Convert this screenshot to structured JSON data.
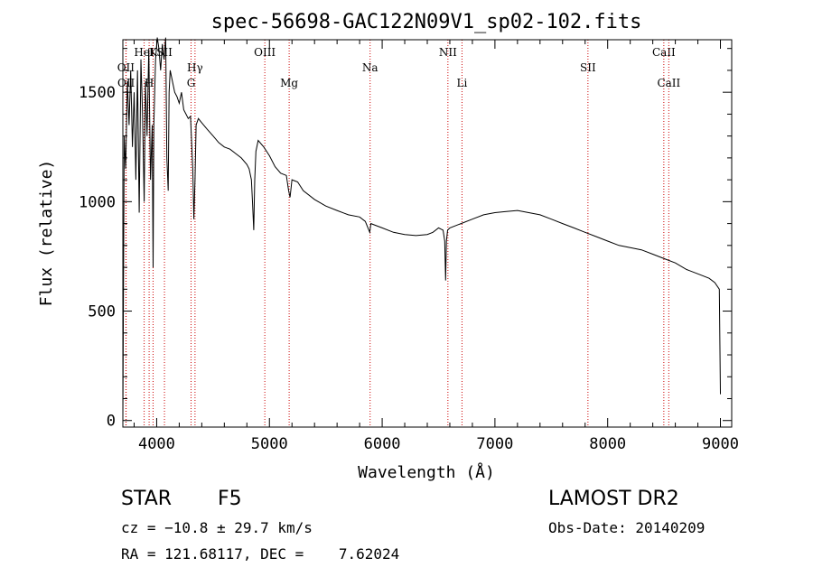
{
  "chart_data": {
    "type": "line",
    "title": "spec-56698-GAC122N09V1_sp02-102.fits",
    "xlabel": "Wavelength (Å)",
    "ylabel": "Flux (relative)",
    "xlim": [
      3700,
      9100
    ],
    "ylim": [
      -30,
      1740
    ],
    "xticks": [
      4000,
      5000,
      6000,
      7000,
      8000,
      9000
    ],
    "yticks": [
      0,
      500,
      1000,
      1500
    ],
    "grid": false,
    "series": [
      {
        "x": [
          3700,
          3712,
          3725,
          3740,
          3755,
          3770,
          3785,
          3800,
          3815,
          3830,
          3845,
          3860,
          3875,
          3889,
          3900,
          3915,
          3930,
          3945,
          3960,
          3968,
          3975,
          3990,
          4005,
          4020,
          4035,
          4050,
          4065,
          4080,
          4090,
          4102,
          4110,
          4120,
          4140,
          4160,
          4180,
          4200,
          4220,
          4240,
          4260,
          4280,
          4300,
          4320,
          4330,
          4340,
          4350,
          4370,
          4400,
          4450,
          4500,
          4550,
          4600,
          4650,
          4700,
          4750,
          4800,
          4820,
          4840,
          4850,
          4861,
          4870,
          4880,
          4900,
          4950,
          5000,
          5050,
          5100,
          5150,
          5170,
          5183,
          5200,
          5250,
          5300,
          5400,
          5500,
          5600,
          5700,
          5800,
          5850,
          5890,
          5900,
          5950,
          6000,
          6100,
          6200,
          6300,
          6400,
          6450,
          6500,
          6540,
          6555,
          6563,
          6570,
          6580,
          6600,
          6700,
          6800,
          6900,
          7000,
          7100,
          7200,
          7300,
          7400,
          7500,
          7600,
          7700,
          7800,
          7900,
          8000,
          8100,
          8200,
          8300,
          8400,
          8500,
          8600,
          8700,
          8800,
          8900,
          8950,
          8990,
          9000
        ],
        "y": [
          0,
          1300,
          1150,
          1550,
          1350,
          1600,
          1250,
          1500,
          1100,
          1600,
          950,
          1650,
          1400,
          1000,
          1550,
          1300,
          1700,
          1100,
          1350,
          700,
          1350,
          1650,
          1750,
          1700,
          1600,
          1720,
          1650,
          1750,
          1200,
          1050,
          1500,
          1600,
          1550,
          1500,
          1480,
          1450,
          1500,
          1420,
          1400,
          1380,
          1390,
          1150,
          920,
          1100,
          1350,
          1380,
          1360,
          1330,
          1300,
          1270,
          1250,
          1240,
          1220,
          1200,
          1170,
          1150,
          1100,
          1000,
          870,
          1100,
          1230,
          1280,
          1250,
          1210,
          1160,
          1130,
          1120,
          1050,
          1020,
          1100,
          1090,
          1050,
          1010,
          980,
          960,
          940,
          930,
          910,
          860,
          900,
          890,
          880,
          860,
          850,
          845,
          850,
          860,
          880,
          870,
          820,
          640,
          820,
          870,
          880,
          900,
          920,
          940,
          950,
          955,
          960,
          950,
          940,
          920,
          900,
          880,
          860,
          840,
          820,
          800,
          790,
          780,
          760,
          740,
          720,
          690,
          670,
          650,
          630,
          600,
          120
        ]
      }
    ],
    "lines": [
      {
        "name": "OII",
        "x": 3727,
        "row": 2
      },
      {
        "name": "OII",
        "x": 3729,
        "row": 3
      },
      {
        "name": "HeI",
        "x": 3889,
        "row": 1
      },
      {
        "name": "H",
        "x": 3933,
        "row": 3
      },
      {
        "name": "K",
        "x": 3968,
        "row": 1
      },
      {
        "name": "SII",
        "x": 4069,
        "row": 1
      },
      {
        "name": "Hγ",
        "x": 4340,
        "row": 2
      },
      {
        "name": "G",
        "x": 4305,
        "row": 3
      },
      {
        "name": "OIII",
        "x": 4959,
        "row": 1
      },
      {
        "name": "Mg",
        "x": 5175,
        "row": 3
      },
      {
        "name": "Na",
        "x": 5893,
        "row": 2
      },
      {
        "name": "NII",
        "x": 6583,
        "row": 1
      },
      {
        "name": "Li",
        "x": 6708,
        "row": 3
      },
      {
        "name": "SII",
        "x": 7825,
        "row": 2
      },
      {
        "name": "CaII",
        "x": 8498,
        "row": 1
      },
      {
        "name": "CaII",
        "x": 8542,
        "row": 3
      }
    ],
    "colors": {
      "spectrum": "#000000",
      "line_marker": "#cc0000"
    }
  },
  "info": {
    "object_class": "STAR",
    "subclass": "F5",
    "survey": "LAMOST DR2",
    "redshift_text": "cz = −10.8 ± 29.7 km/s",
    "obs_date_text": "Obs-Date: 20140209",
    "coords_text": "RA = 121.68117, DEC =    7.62024"
  }
}
